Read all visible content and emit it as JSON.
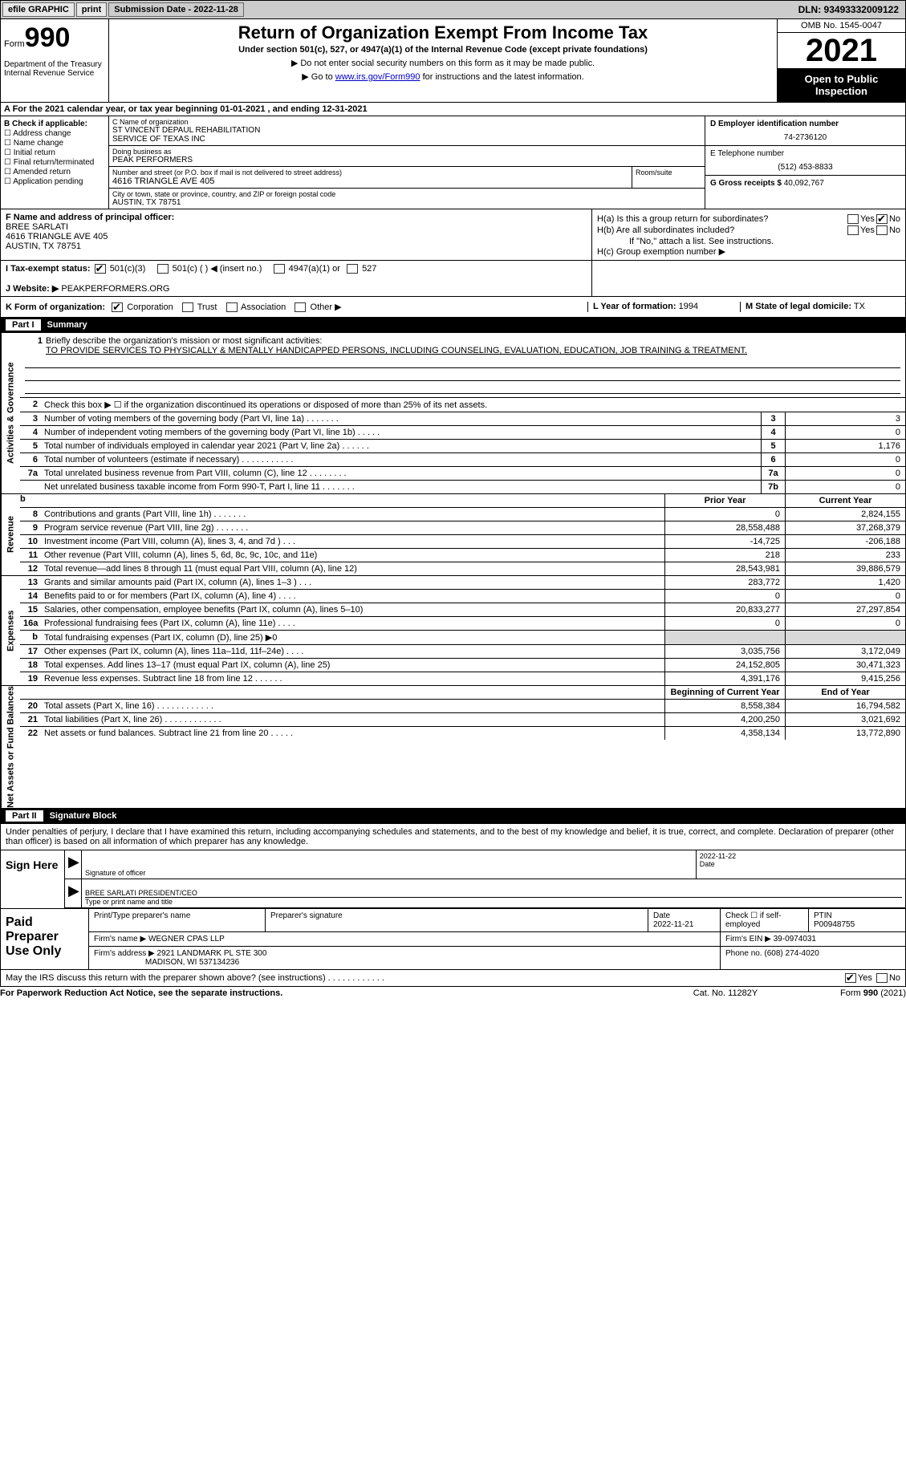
{
  "topbar": {
    "efile": "efile GRAPHIC",
    "print": "print",
    "submission": "Submission Date - 2022-11-28",
    "dln": "DLN: 93493332009122"
  },
  "header": {
    "form_prefix": "Form",
    "form_number": "990",
    "dept": "Department of the Treasury\nInternal Revenue Service",
    "title": "Return of Organization Exempt From Income Tax",
    "subtitle": "Under section 501(c), 527, or 4947(a)(1) of the Internal Revenue Code (except private foundations)",
    "notice1": "▶ Do not enter social security numbers on this form as it may be made public.",
    "notice2_pre": "▶ Go to ",
    "notice2_link": "www.irs.gov/Form990",
    "notice2_post": " for instructions and the latest information.",
    "omb": "OMB No. 1545-0047",
    "year": "2021",
    "openpub": "Open to Public Inspection"
  },
  "row_a": "A For the 2021 calendar year, or tax year beginning 01-01-2021     , and ending 12-31-2021",
  "col_b": {
    "label": "B Check if applicable:",
    "items": [
      "Address change",
      "Name change",
      "Initial return",
      "Final return/terminated",
      "Amended return",
      "Application pending"
    ]
  },
  "col_c": {
    "name_lbl": "C Name of organization",
    "name1": "ST VINCENT DEPAUL REHABILITATION",
    "name2": "SERVICE OF TEXAS INC",
    "dba_lbl": "Doing business as",
    "dba": "PEAK PERFORMERS",
    "addr_lbl": "Number and street (or P.O. box if mail is not delivered to street address)",
    "room_lbl": "Room/suite",
    "addr": "4616 TRIANGLE AVE 405",
    "city_lbl": "City or town, state or province, country, and ZIP or foreign postal code",
    "city": "AUSTIN, TX   78751"
  },
  "col_d": {
    "ein_lbl": "D Employer identification number",
    "ein": "74-2736120",
    "tel_lbl": "E Telephone number",
    "tel": "(512) 453-8833",
    "gross_lbl": "G Gross receipts $",
    "gross": "40,092,767"
  },
  "section_f": {
    "lbl": "F Name and address of principal officer:",
    "name": "BREE SARLATI",
    "addr": "4616 TRIANGLE AVE 405",
    "city": "AUSTIN, TX   78751"
  },
  "section_h": {
    "ha": "H(a)  Is this a group return for subordinates?",
    "hb": "H(b)  Are all subordinates included?",
    "hb_note": "If \"No,\" attach a list. See instructions.",
    "hc": "H(c)  Group exemption number ▶",
    "yes": "Yes",
    "no": "No"
  },
  "row_i": {
    "lbl": "I   Tax-exempt status:",
    "opt1": "501(c)(3)",
    "opt2": "501(c) (  ) ◀ (insert no.)",
    "opt3": "4947(a)(1) or",
    "opt4": "527"
  },
  "row_j": {
    "lbl": "J   Website: ▶",
    "val": "PEAKPERFORMERS.ORG"
  },
  "row_k": {
    "lbl": "K Form of organization:",
    "opts": [
      "Corporation",
      "Trust",
      "Association",
      "Other ▶"
    ],
    "l_lbl": "L Year of formation:",
    "l_val": "1994",
    "m_lbl": "M State of legal domicile:",
    "m_val": "TX"
  },
  "part1": {
    "num": "Part I",
    "title": "Summary"
  },
  "mission": {
    "num": "1",
    "lbl": "Briefly describe the organization's mission or most significant activities:",
    "text": "TO PROVIDE SERVICES TO PHYSICALLY & MENTALLY HANDICAPPED PERSONS, INCLUDING COUNSELING, EVALUATION, EDUCATION, JOB TRAINING & TREATMENT."
  },
  "line2": "Check this box ▶ ☐  if the organization discontinued its operations or disposed of more than 25% of its net assets.",
  "vtabs": {
    "gov": "Activities & Governance",
    "rev": "Revenue",
    "exp": "Expenses",
    "net": "Net Assets or Fund Balances"
  },
  "gov_rows": [
    {
      "n": "3",
      "d": "Number of voting members of the governing body (Part VI, line 1a)   .    .    .    .    .    .    .",
      "box": "3",
      "v": "3"
    },
    {
      "n": "4",
      "d": "Number of independent voting members of the governing body (Part VI, line 1b)   .    .    .    .    .",
      "box": "4",
      "v": "0"
    },
    {
      "n": "5",
      "d": "Total number of individuals employed in calendar year 2021 (Part V, line 2a)   .    .    .    .    .    .",
      "box": "5",
      "v": "1,176"
    },
    {
      "n": "6",
      "d": "Total number of volunteers (estimate if necessary)    .    .    .    .    .    .    .    .    .    .    .",
      "box": "6",
      "v": "0"
    },
    {
      "n": "7a",
      "d": "Total unrelated business revenue from Part VIII, column (C), line 12   .    .    .    .    .    .    .    .",
      "box": "7a",
      "v": "0"
    },
    {
      "n": "",
      "d": "Net unrelated business taxable income from Form 990-T, Part I, line 11   .    .    .    .    .    .    .",
      "box": "7b",
      "v": "0"
    }
  ],
  "colhdr": {
    "prior": "Prior Year",
    "current": "Current Year"
  },
  "rev_rows": [
    {
      "n": "8",
      "d": "Contributions and grants (Part VIII, line 1h)   .    .    .    .    .    .    .",
      "v1": "0",
      "v2": "2,824,155"
    },
    {
      "n": "9",
      "d": "Program service revenue (Part VIII, line 2g)    .    .    .    .    .    .    .",
      "v1": "28,558,488",
      "v2": "37,268,379"
    },
    {
      "n": "10",
      "d": "Investment income (Part VIII, column (A), lines 3, 4, and 7d )    .    .    .",
      "v1": "-14,725",
      "v2": "-206,188"
    },
    {
      "n": "11",
      "d": "Other revenue (Part VIII, column (A), lines 5, 6d, 8c, 9c, 10c, and 11e)",
      "v1": "218",
      "v2": "233"
    },
    {
      "n": "12",
      "d": "Total revenue—add lines 8 through 11 (must equal Part VIII, column (A), line 12)",
      "v1": "28,543,981",
      "v2": "39,886,579"
    }
  ],
  "exp_rows": [
    {
      "n": "13",
      "d": "Grants and similar amounts paid (Part IX, column (A), lines 1–3 )   .    .    .",
      "v1": "283,772",
      "v2": "1,420"
    },
    {
      "n": "14",
      "d": "Benefits paid to or for members (Part IX, column (A), line 4)   .    .    .    .",
      "v1": "0",
      "v2": "0"
    },
    {
      "n": "15",
      "d": "Salaries, other compensation, employee benefits (Part IX, column (A), lines 5–10)",
      "v1": "20,833,277",
      "v2": "27,297,854"
    },
    {
      "n": "16a",
      "d": "Professional fundraising fees (Part IX, column (A), line 11e)    .    .    .    .",
      "v1": "0",
      "v2": "0"
    },
    {
      "n": "b",
      "d": "Total fundraising expenses (Part IX, column (D), line 25) ▶0",
      "v1": "",
      "v2": "",
      "shade": true
    },
    {
      "n": "17",
      "d": "Other expenses (Part IX, column (A), lines 11a–11d, 11f–24e)   .    .    .    .",
      "v1": "3,035,756",
      "v2": "3,172,049"
    },
    {
      "n": "18",
      "d": "Total expenses. Add lines 13–17 (must equal Part IX, column (A), line 25)",
      "v1": "24,152,805",
      "v2": "30,471,323"
    },
    {
      "n": "19",
      "d": "Revenue less expenses. Subtract line 18 from line 12   .    .    .    .    .    .",
      "v1": "4,391,176",
      "v2": "9,415,256"
    }
  ],
  "net_hdr": {
    "c1": "Beginning of Current Year",
    "c2": "End of Year"
  },
  "net_rows": [
    {
      "n": "20",
      "d": "Total assets (Part X, line 16)   .    .    .    .    .    .    .    .    .    .    .    .",
      "v1": "8,558,384",
      "v2": "16,794,582"
    },
    {
      "n": "21",
      "d": "Total liabilities (Part X, line 26)   .    .    .    .    .    .    .    .    .    .    .    .",
      "v1": "4,200,250",
      "v2": "3,021,692"
    },
    {
      "n": "22",
      "d": "Net assets or fund balances. Subtract line 21 from line 20   .    .    .    .    .",
      "v1": "4,358,134",
      "v2": "13,772,890"
    }
  ],
  "part2": {
    "num": "Part II",
    "title": "Signature Block"
  },
  "sig_text": "Under penalties of perjury, I declare that I have examined this return, including accompanying schedules and statements, and to the best of my knowledge and belief, it is true, correct, and complete. Declaration of preparer (other than officer) is based on all information of which preparer has any knowledge.",
  "sign": {
    "here": "Sign Here",
    "sig_lbl": "Signature of officer",
    "date": "2022-11-22",
    "date_lbl": "Date",
    "name": "BREE SARLATI  PRESIDENT/CEO",
    "name_lbl": "Type or print name and title"
  },
  "prep": {
    "title": "Paid Preparer Use Only",
    "r1": {
      "c1": "Print/Type preparer's name",
      "c2": "Preparer's signature",
      "c3_lbl": "Date",
      "c3": "2022-11-21",
      "c4": "Check ☐ if self-employed",
      "c5_lbl": "PTIN",
      "c5": "P00948755"
    },
    "r2": {
      "c1": "Firm's name      ▶",
      "c1v": "WEGNER CPAS LLP",
      "c2": "Firm's EIN ▶",
      "c2v": "39-0974031"
    },
    "r3": {
      "c1": "Firm's address ▶",
      "c1v": "2921 LANDMARK PL STE 300",
      "c1v2": "MADISON, WI   537134236",
      "c2": "Phone no.",
      "c2v": "(608) 274-4020"
    }
  },
  "discuss": {
    "text": "May the IRS discuss this return with the preparer shown above? (see instructions)    .    .    .    .    .    .    .    .    .    .    .    .",
    "yes": "Yes",
    "no": "No"
  },
  "footer": {
    "l": "For Paperwork Reduction Act Notice, see the separate instructions.",
    "c": "Cat. No. 11282Y",
    "r": "Form 990 (2021)"
  }
}
